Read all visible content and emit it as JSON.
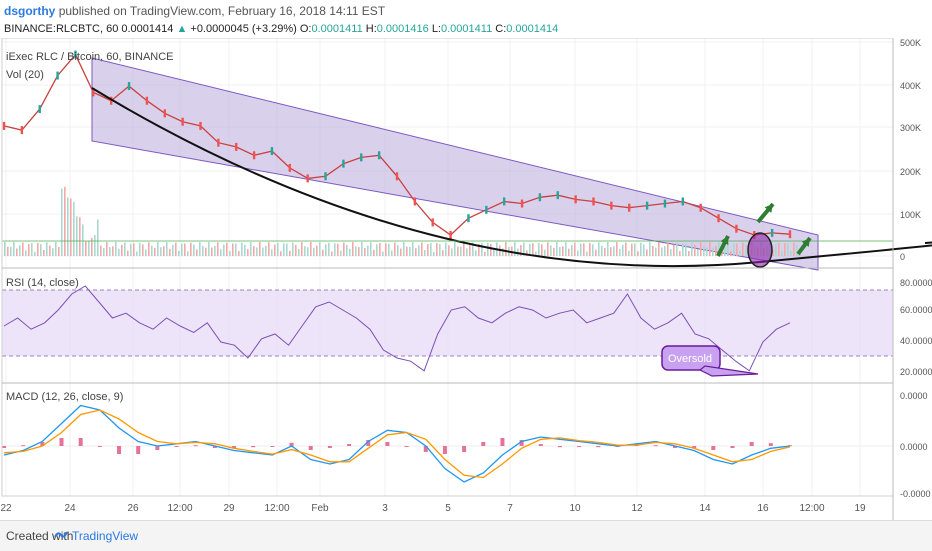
{
  "header": {
    "user": "dsgorthy",
    "published": "published on TradingView.com, February 16, 2018 14:11 EST",
    "symbol": "BINANCE:RLCBTC, 60",
    "last": "0.0001414",
    "change": "+0.0000045 (+3.29%)",
    "o_label": "O:",
    "o": "0.0001411",
    "h_label": "H:",
    "h": "0.0001416",
    "l_label": "L:",
    "l": "0.0001411",
    "c_label": "C:",
    "c": "0.0001414"
  },
  "footer": {
    "created": "Created with",
    "brand": "TradingView"
  },
  "colors": {
    "channel_fill": "#b9abdd",
    "channel_line": "#7e57c2",
    "rsi_band": "#e6d9f7",
    "rsi_line": "#7b4fb5",
    "macd_line": "#2196f3",
    "signal_line": "#ff9800",
    "histogram": "#e57399",
    "candle_up": "#26a69a",
    "candle_down": "#ef5350",
    "arrow": "#2e7d32",
    "oversold_fill": "#c8a2f0"
  },
  "chart_data": [
    {
      "type": "line",
      "title": "iExec RLC / Bitcoin, 60, BINANCE",
      "subtitle": "Vol (20)",
      "x_tick_labels": [
        "22",
        "24",
        "26",
        "12:00",
        "29",
        "12:00",
        "Feb",
        "3",
        "5",
        "7",
        "10",
        "12",
        "14",
        "16",
        "12:00",
        "19"
      ],
      "y_tick_labels": [
        "500K",
        "400K",
        "300K",
        "200K",
        "100K",
        "0"
      ],
      "ylim": [
        -10000,
        500000
      ],
      "series": [
        {
          "values": [
            300000,
            290000,
            340000,
            420000,
            470000,
            380000,
            360000,
            395000,
            360000,
            330000,
            310000,
            300000,
            260000,
            250000,
            230000,
            240000,
            200000,
            175000,
            180000,
            210000,
            225000,
            230000,
            180000,
            120000,
            70000,
            40000,
            80000,
            100000,
            120000,
            115000,
            130000,
            135000,
            125000,
            120000,
            110000,
            105000,
            110000,
            115000,
            120000,
            105000,
            80000,
            55000,
            40000,
            45000,
            42000
          ]
        }
      ],
      "annotations": [
        "Oversold"
      ]
    },
    {
      "type": "line",
      "title": "RSI (14, close)",
      "y_tick_labels": [
        "80.0000",
        "60.0000",
        "40.0000",
        "20.0000"
      ],
      "ylim": [
        15,
        85
      ],
      "series": [
        {
          "values": [
            50,
            55,
            48,
            52,
            60,
            70,
            75,
            65,
            55,
            58,
            52,
            48,
            55,
            50,
            46,
            52,
            40,
            38,
            30,
            42,
            45,
            38,
            50,
            62,
            65,
            60,
            55,
            48,
            35,
            30,
            28,
            22,
            45,
            60,
            62,
            55,
            52,
            58,
            62,
            60,
            55,
            58,
            60,
            52,
            55,
            58,
            70,
            55,
            48,
            52,
            58,
            45,
            42,
            35,
            28,
            22,
            40,
            48,
            52
          ]
        }
      ]
    },
    {
      "type": "line",
      "title": "MACD (12, 26, close, 9)",
      "y_tick_labels": [
        "0.0000",
        "0.0000",
        "-0.0000"
      ],
      "series": [
        {
          "values": [
            -0.2,
            -0.1,
            0.1,
            0.5,
            0.9,
            0.8,
            0.4,
            0.1,
            0.0,
            0.05,
            0.1,
            0.0,
            -0.1,
            -0.15,
            -0.2,
            0.0,
            -0.3,
            -0.4,
            -0.3,
            0.1,
            0.35,
            0.3,
            0.0,
            -0.5,
            -0.8,
            -0.6,
            -0.2,
            0.1,
            0.2,
            0.15,
            0.1,
            0.05,
            0.0,
            0.05,
            0.1,
            0.0,
            -0.1,
            -0.3,
            -0.4,
            -0.2,
            -0.05,
            0.0
          ]
        },
        {
          "values": [
            -0.15,
            -0.12,
            0.0,
            0.3,
            0.7,
            0.8,
            0.6,
            0.3,
            0.1,
            0.05,
            0.08,
            0.05,
            -0.05,
            -0.12,
            -0.18,
            -0.08,
            -0.2,
            -0.35,
            -0.35,
            -0.05,
            0.25,
            0.3,
            0.15,
            -0.3,
            -0.65,
            -0.7,
            -0.4,
            -0.05,
            0.15,
            0.18,
            0.12,
            0.08,
            0.02,
            0.02,
            0.08,
            0.05,
            -0.05,
            -0.2,
            -0.35,
            -0.3,
            -0.12,
            -0.02
          ]
        }
      ]
    }
  ]
}
